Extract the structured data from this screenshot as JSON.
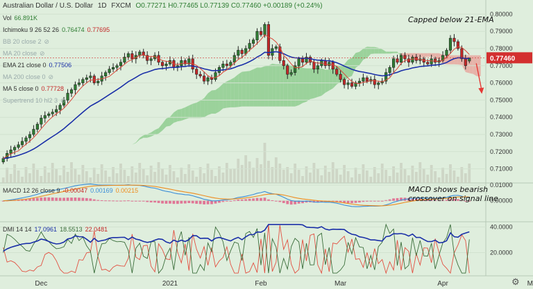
{
  "header": {
    "symbol": "Australian Dollar / U.S. Dollar",
    "interval": "1D",
    "source": "FXCM",
    "ohlc": "O0.77271 H0.77465 L0.77139 C0.77460 +0.00189 (+0.24%)"
  },
  "legend": {
    "vol_label": "Vol",
    "vol_value": "66.891K",
    "ichimoku_label": "Ichimoku 9 26 52 26",
    "ichimoku_v1": "0.76474",
    "ichimoku_v2": "0.77695",
    "bb_label": "BB 20 close 2",
    "ma20_label": "MA 20 close",
    "ema21_label": "EMA 21 close 0",
    "ema21_value": "0.77506",
    "ma200_label": "MA 200 close 0",
    "ma5_label": "MA 5 close 0",
    "ma5_value": "0.77728",
    "supertrend_label": "Supertrend 10 hl2 3",
    "macd_label": "MACD 12 26 close 9",
    "macd_hist": "-0.00047",
    "macd_line": "0.00169",
    "macd_signal": "0.00215",
    "dmi_label": "DMI 14 14",
    "dmi_adx": "17.0961",
    "dmi_plus": "18.5513",
    "dmi_minus": "22.0481"
  },
  "annotations": {
    "capped": "Capped below 21-EMA",
    "macd_note_1": "MACD shows bearish",
    "macd_note_2": "crossover on signal line"
  },
  "colors": {
    "up": "#2e7d32",
    "down": "#c62828",
    "ema21": "#1a2fa8",
    "ma5": "#d9473a",
    "cloud_bull": "#8fcc8f",
    "cloud_bear": "#e8a8a0",
    "price_tag": "#d32f2f",
    "macd_line": "#3a8dd8",
    "macd_signal": "#ee8c1e",
    "macd_hist": "#e0608a",
    "adx": "#1a2fa8",
    "dmi_plus": "#3b6e3b",
    "dmi_minus": "#e25041"
  },
  "chart_data": {
    "type": "candlestick",
    "x_labels": [
      "Dec",
      "2021",
      "Feb",
      "Mar",
      "Apr",
      "May"
    ],
    "x_label_bar_index": [
      10,
      44,
      68,
      89,
      116,
      140
    ],
    "price_axis": {
      "range": [
        0.705,
        0.805
      ],
      "ticks": [
        "0.80000",
        "0.79000",
        "0.78000",
        "0.77000",
        "0.76000",
        "0.75000",
        "0.74000",
        "0.73000",
        "0.72000",
        "0.71000"
      ],
      "current_price": "0.77460"
    },
    "macd_axis": {
      "range": [
        -0.0125,
        0.0105
      ],
      "ticks": [
        "0.01000",
        "0.00000"
      ]
    },
    "dmi_axis": {
      "range": [
        3,
        43
      ],
      "ticks": [
        "40.0000",
        "20.0000"
      ]
    },
    "close": [
      0.716,
      0.719,
      0.721,
      0.7225,
      0.724,
      0.726,
      0.728,
      0.73,
      0.733,
      0.736,
      0.7395,
      0.741,
      0.742,
      0.743,
      0.7445,
      0.747,
      0.75,
      0.754,
      0.756,
      0.759,
      0.76,
      0.762,
      0.763,
      0.764,
      0.76,
      0.761,
      0.764,
      0.766,
      0.768,
      0.769,
      0.77,
      0.772,
      0.775,
      0.777,
      0.774,
      0.776,
      0.778,
      0.776,
      0.773,
      0.774,
      0.776,
      0.772,
      0.77,
      0.771,
      0.773,
      0.769,
      0.77,
      0.773,
      0.771,
      0.774,
      0.768,
      0.765,
      0.764,
      0.761,
      0.763,
      0.762,
      0.766,
      0.769,
      0.771,
      0.77,
      0.772,
      0.776,
      0.779,
      0.777,
      0.78,
      0.783,
      0.785,
      0.79,
      0.788,
      0.794,
      0.776,
      0.78,
      0.781,
      0.773,
      0.77,
      0.765,
      0.766,
      0.77,
      0.774,
      0.772,
      0.775,
      0.772,
      0.768,
      0.77,
      0.773,
      0.77,
      0.772,
      0.768,
      0.765,
      0.762,
      0.759,
      0.76,
      0.758,
      0.76,
      0.761,
      0.763,
      0.761,
      0.762,
      0.759,
      0.76,
      0.761,
      0.766,
      0.769,
      0.774,
      0.772,
      0.776,
      0.774,
      0.772,
      0.775,
      0.773,
      0.774,
      0.772,
      0.771,
      0.774,
      0.772,
      0.773,
      0.776,
      0.779,
      0.786,
      0.784,
      0.78,
      0.774,
      0.77,
      0.7746
    ]
  }
}
